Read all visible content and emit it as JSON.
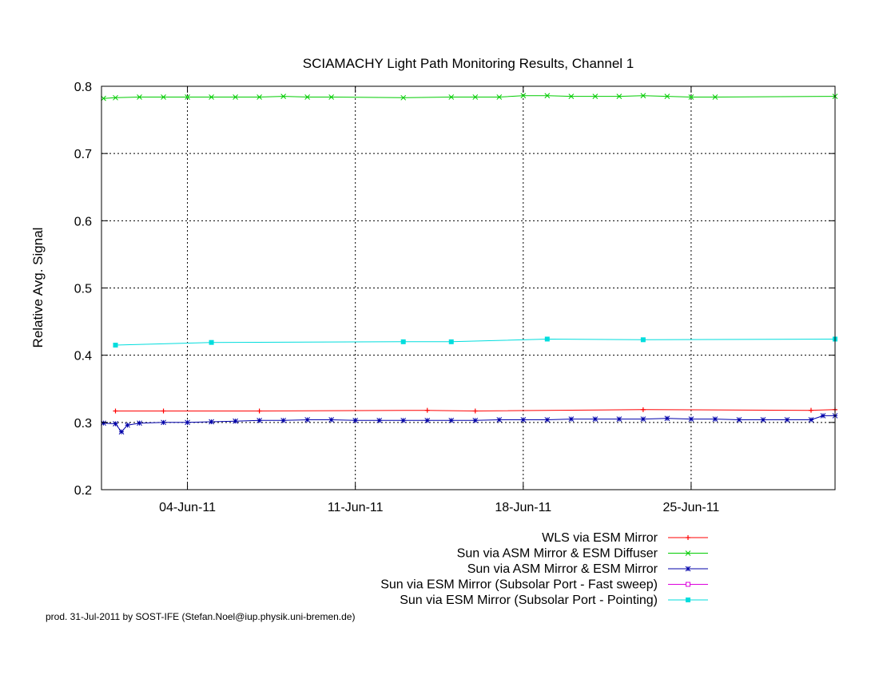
{
  "chart_data": {
    "type": "line",
    "title": "SCIAMACHY Light Path Monitoring Results, Channel 1",
    "ylabel": "Relative Avg. Signal",
    "xlabel": "",
    "x_axis_type": "date",
    "xlim": [
      "2011-05-31T10:00",
      "2011-07-01T00:00"
    ],
    "ylim": [
      0.2,
      0.8
    ],
    "y_ticks": [
      0.2,
      0.3,
      0.4,
      0.5,
      0.6,
      0.7,
      0.8
    ],
    "y_tick_labels": [
      "0.2",
      "0.3",
      "0.4",
      "0.5",
      "0.6",
      "0.7",
      "0.8"
    ],
    "x_ticks": [
      "2011-06-04",
      "2011-06-11",
      "2011-06-18",
      "2011-06-25"
    ],
    "x_tick_labels": [
      "04-Jun-11",
      "11-Jun-11",
      "18-Jun-11",
      "25-Jun-11"
    ],
    "grid": true,
    "legend_position": "below-right",
    "series": [
      {
        "name": "WLS via ESM Mirror",
        "color": "#ff0000",
        "marker": "plus",
        "x": [
          "2011-06-01",
          "2011-06-03",
          "2011-06-07",
          "2011-06-14",
          "2011-06-16",
          "2011-06-23",
          "2011-06-30",
          "2011-07-01"
        ],
        "y": [
          0.317,
          0.317,
          0.317,
          0.318,
          0.317,
          0.319,
          0.318,
          0.319
        ]
      },
      {
        "name": "Sun via ASM Mirror & ESM Diffuser",
        "color": "#00cc00",
        "marker": "x",
        "x": [
          "2011-05-31T12:00",
          "2011-06-01",
          "2011-06-02",
          "2011-06-03",
          "2011-06-04",
          "2011-06-05",
          "2011-06-06",
          "2011-06-07",
          "2011-06-08",
          "2011-06-09",
          "2011-06-10",
          "2011-06-13",
          "2011-06-15",
          "2011-06-16",
          "2011-06-17",
          "2011-06-18",
          "2011-06-19",
          "2011-06-20",
          "2011-06-21",
          "2011-06-22",
          "2011-06-23",
          "2011-06-24",
          "2011-06-25",
          "2011-06-26",
          "2011-07-01"
        ],
        "y": [
          0.782,
          0.783,
          0.784,
          0.784,
          0.784,
          0.784,
          0.784,
          0.784,
          0.785,
          0.784,
          0.784,
          0.783,
          0.784,
          0.784,
          0.784,
          0.786,
          0.786,
          0.785,
          0.785,
          0.785,
          0.786,
          0.785,
          0.784,
          0.784,
          0.785
        ]
      },
      {
        "name": "Sun via ASM Mirror & ESM Mirror",
        "color": "#0000aa",
        "marker": "star",
        "x": [
          "2011-05-31T12:00",
          "2011-06-01",
          "2011-06-01T06:00",
          "2011-06-01T12:00",
          "2011-06-02",
          "2011-06-03",
          "2011-06-04",
          "2011-06-05",
          "2011-06-06",
          "2011-06-07",
          "2011-06-08",
          "2011-06-09",
          "2011-06-10",
          "2011-06-11",
          "2011-06-12",
          "2011-06-13",
          "2011-06-14",
          "2011-06-15",
          "2011-06-16",
          "2011-06-17",
          "2011-06-18",
          "2011-06-19",
          "2011-06-20",
          "2011-06-21",
          "2011-06-22",
          "2011-06-23",
          "2011-06-24",
          "2011-06-25",
          "2011-06-26",
          "2011-06-27",
          "2011-06-28",
          "2011-06-29",
          "2011-06-30",
          "2011-06-30T12:00",
          "2011-07-01"
        ],
        "y": [
          0.299,
          0.298,
          0.286,
          0.296,
          0.299,
          0.3,
          0.3,
          0.301,
          0.302,
          0.303,
          0.303,
          0.304,
          0.304,
          0.303,
          0.303,
          0.303,
          0.303,
          0.303,
          0.303,
          0.304,
          0.304,
          0.304,
          0.305,
          0.305,
          0.305,
          0.305,
          0.306,
          0.305,
          0.305,
          0.304,
          0.304,
          0.304,
          0.304,
          0.31,
          0.31
        ]
      },
      {
        "name": "Sun via ESM Mirror (Subsolar Port - Fast sweep)",
        "color": "#dd00dd",
        "marker": "open-square",
        "x": [],
        "y": []
      },
      {
        "name": "Sun via ESM Mirror (Subsolar Port - Pointing)",
        "color": "#00dddd",
        "marker": "filled-square",
        "x": [
          "2011-06-01",
          "2011-06-05",
          "2011-06-13",
          "2011-06-15",
          "2011-06-19",
          "2011-06-23",
          "2011-07-01"
        ],
        "y": [
          0.415,
          0.419,
          0.42,
          0.42,
          0.424,
          0.423,
          0.424
        ]
      }
    ]
  },
  "footer": "prod. 31-Jul-2011 by SOST-IFE (Stefan.Noel@iup.physik.uni-bremen.de)"
}
